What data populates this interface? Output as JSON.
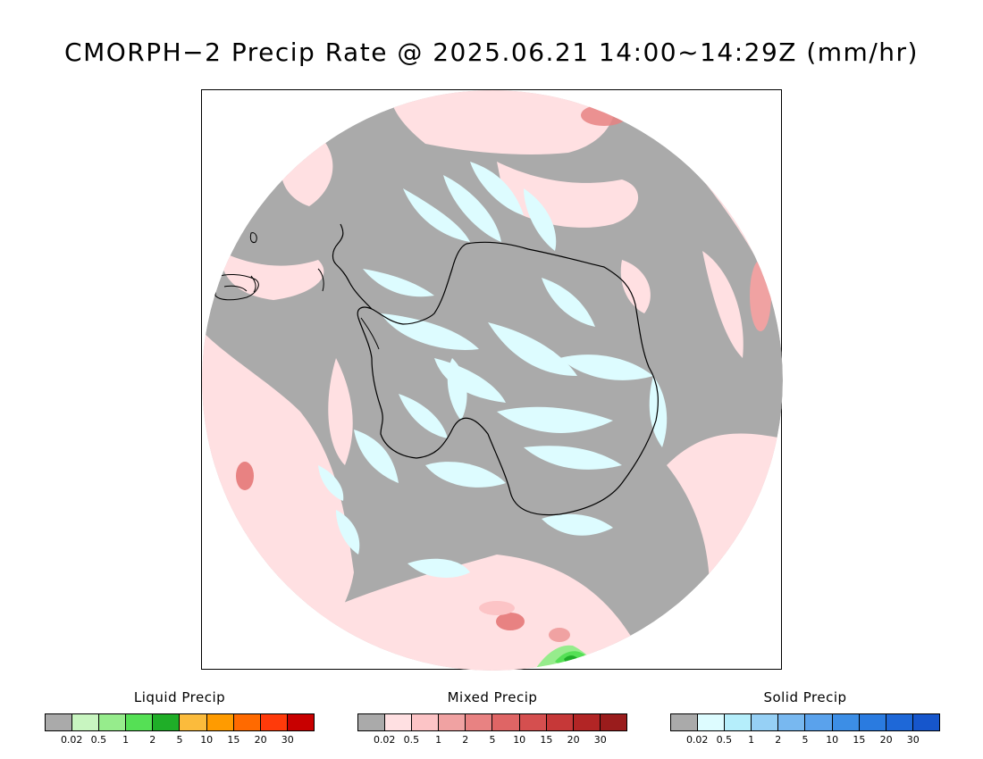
{
  "title": "CMORPH−2 Precip Rate @ 2025.06.21 14:00~14:29Z (mm/hr)",
  "map": {
    "projection": "south-polar-stereographic",
    "background_no_precip_color": "#aaaaaa",
    "coastline_color": "#000000"
  },
  "legends": [
    {
      "title": "Liquid Precip",
      "colors": [
        "#aaaaaa",
        "#c8f5c0",
        "#96ec8c",
        "#55e055",
        "#1fae28",
        "#fbbb3c",
        "#ff9b00",
        "#ff6a00",
        "#ff3a0a",
        "#c80000"
      ],
      "ticks": [
        "0.02",
        "0.5",
        "1",
        "2",
        "5",
        "10",
        "15",
        "20",
        "30"
      ]
    },
    {
      "title": "Mixed Precip",
      "colors": [
        "#aaaaaa",
        "#ffe0e2",
        "#fcc4c6",
        "#f0a2a2",
        "#e88282",
        "#df6565",
        "#d54f4f",
        "#c63838",
        "#b22525",
        "#9a1c1c"
      ],
      "ticks": [
        "0.02",
        "0.5",
        "1",
        "2",
        "5",
        "10",
        "15",
        "20",
        "30"
      ]
    },
    {
      "title": "Solid Precip",
      "colors": [
        "#aaaaaa",
        "#ddfcff",
        "#b5eefb",
        "#96d0f5",
        "#78b8f0",
        "#5aa2ec",
        "#3c8ee6",
        "#2a7be0",
        "#1e68d8",
        "#1656cc"
      ],
      "ticks": [
        "0.02",
        "0.5",
        "1",
        "2",
        "5",
        "10",
        "15",
        "20",
        "30"
      ]
    }
  ]
}
